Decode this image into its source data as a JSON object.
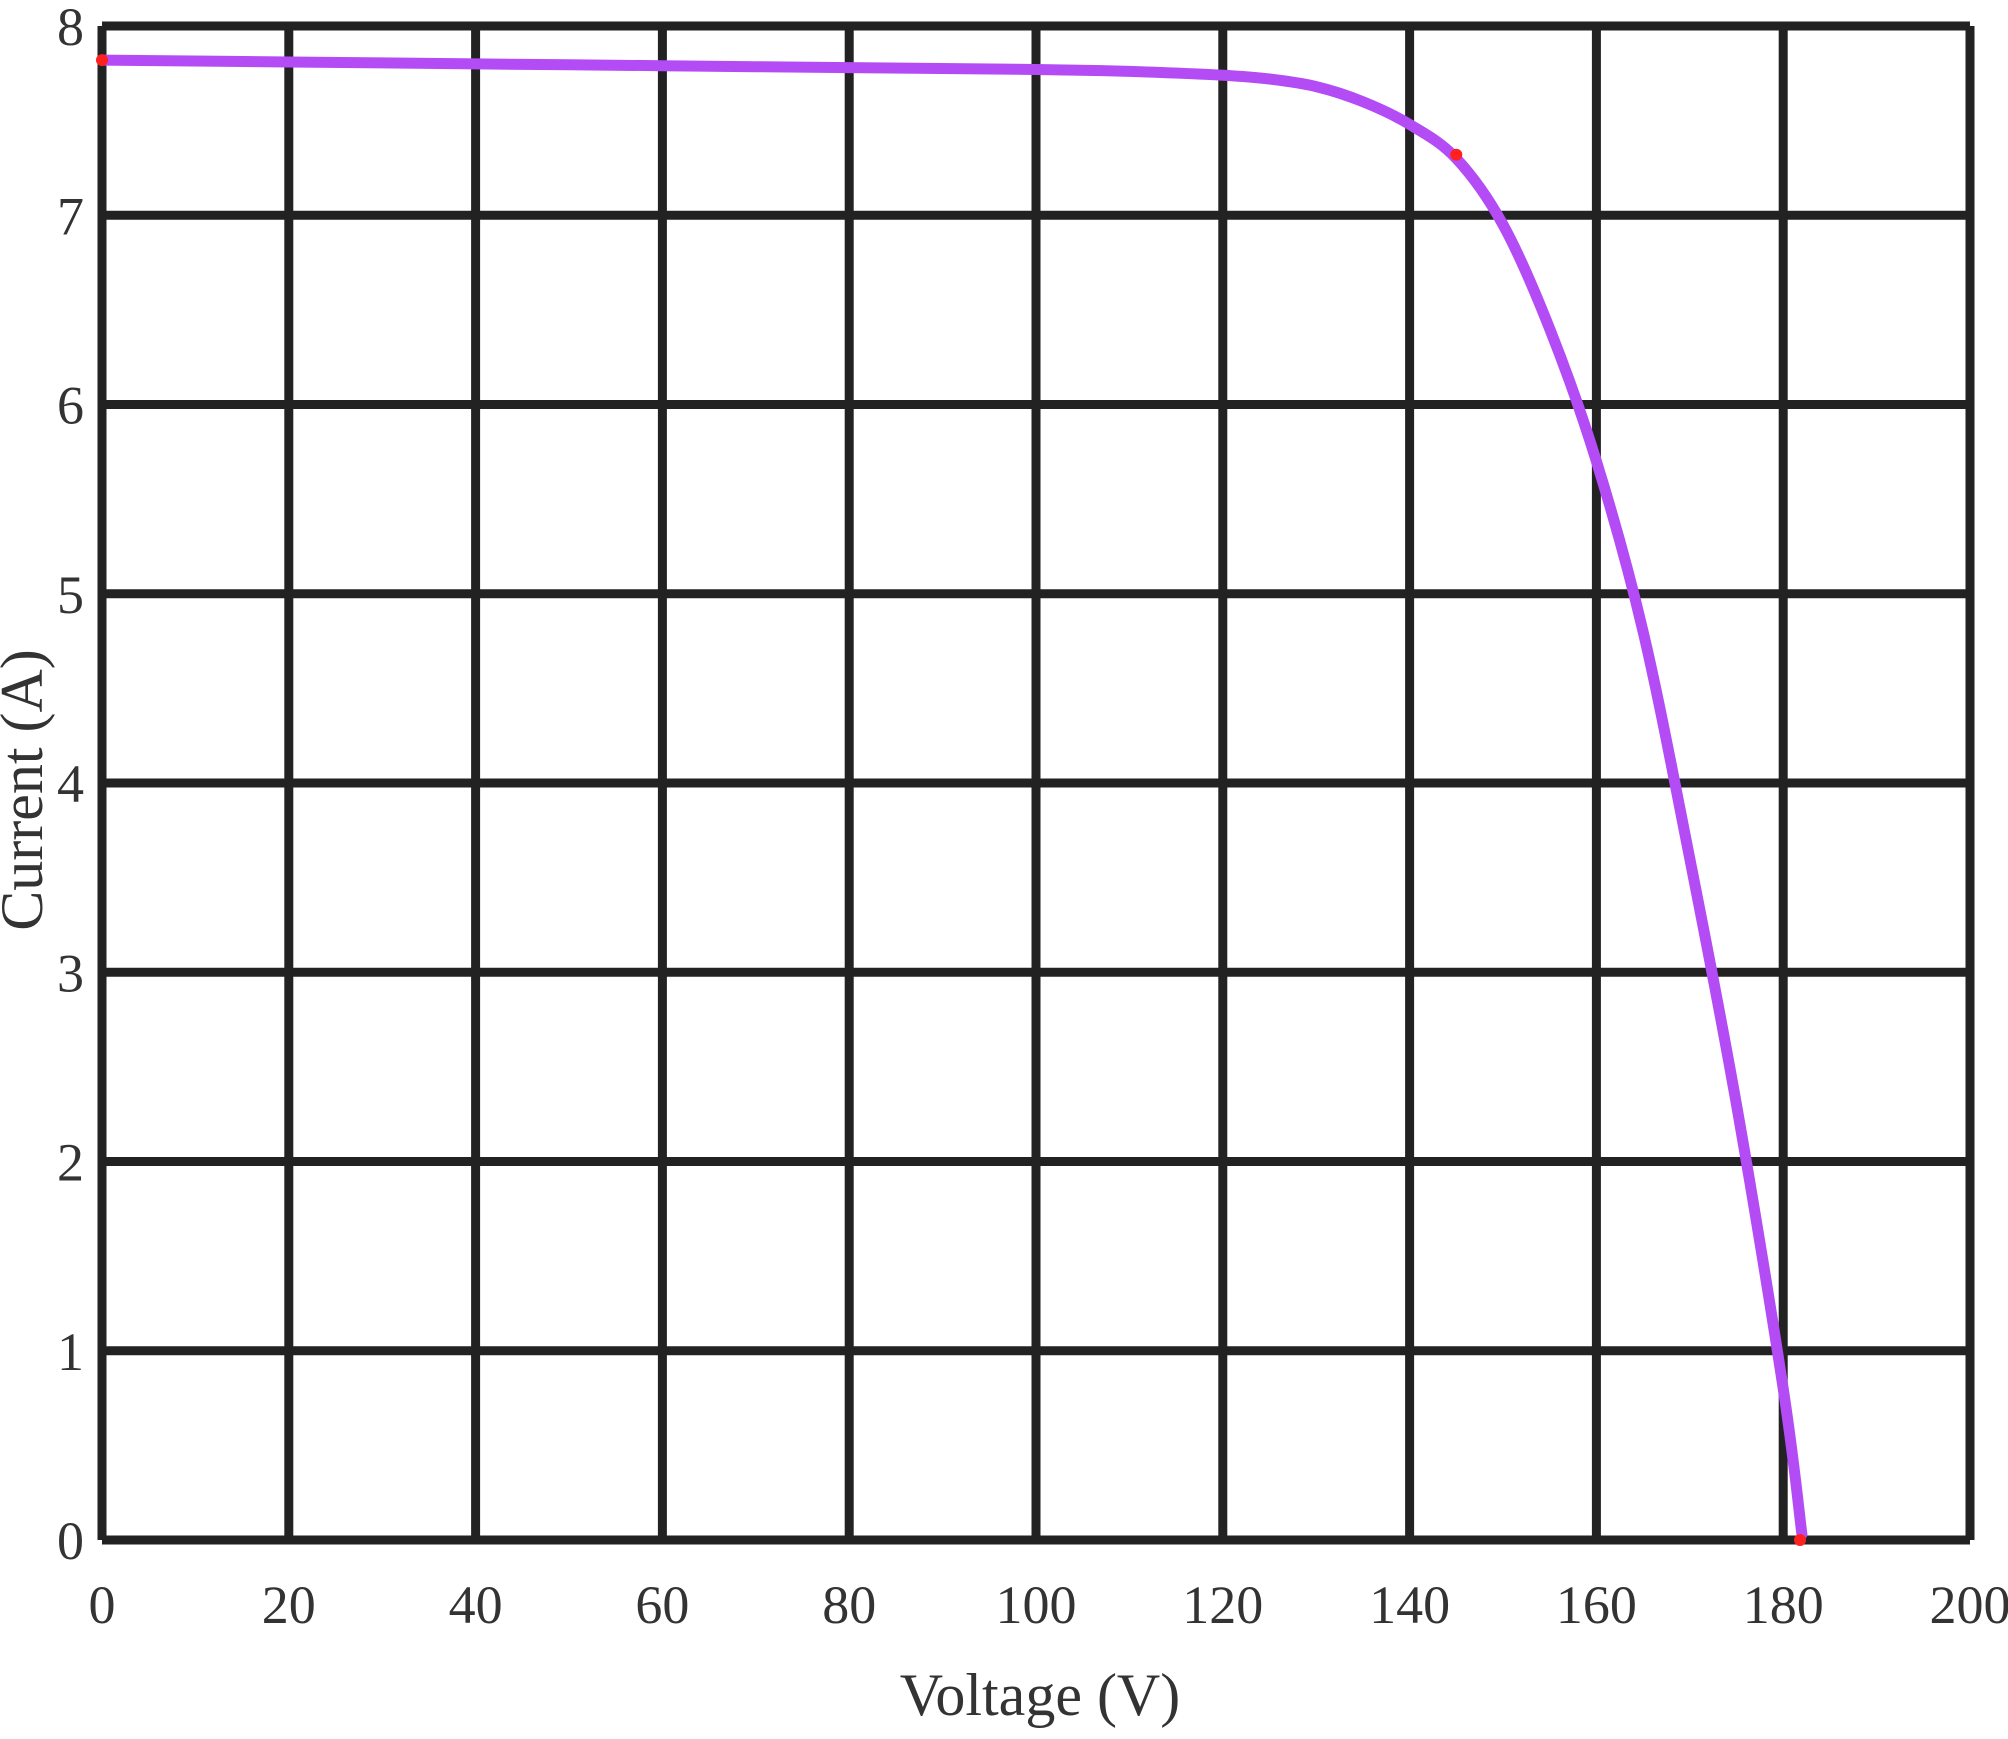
{
  "chart_data": {
    "type": "line",
    "title": "",
    "xlabel": "Voltage (V)",
    "ylabel": "Current (A)",
    "xlim": [
      0,
      200
    ],
    "ylim": [
      0,
      8
    ],
    "xticks": [
      0,
      20,
      40,
      60,
      80,
      100,
      120,
      140,
      160,
      180,
      200
    ],
    "yticks": [
      0,
      1,
      2,
      3,
      4,
      5,
      6,
      7,
      8
    ],
    "xtick_labels": [
      "0",
      "20",
      "40",
      "60",
      "80",
      "100",
      "120",
      "140",
      "160",
      "180",
      "200"
    ],
    "ytick_labels": [
      "0",
      "1",
      "2",
      "3",
      "4",
      "5",
      "6",
      "7",
      "8"
    ],
    "grid": true,
    "series": [
      {
        "color": "#b44cf5",
        "x": [
          0,
          20,
          40,
          60,
          80,
          100,
          110,
          120,
          125,
          130,
          135,
          140,
          145,
          150,
          155,
          160,
          165,
          170,
          175,
          180,
          182
        ],
        "y": [
          7.82,
          7.81,
          7.8,
          7.79,
          7.78,
          7.77,
          7.76,
          7.74,
          7.72,
          7.68,
          7.6,
          7.48,
          7.3,
          6.95,
          6.4,
          5.7,
          4.8,
          3.6,
          2.3,
          0.8,
          0.03
        ]
      }
    ],
    "markers": [
      {
        "x": 0,
        "y": 7.82,
        "color": "#ff2020"
      },
      {
        "x": 145,
        "y": 7.32,
        "color": "#ff2020"
      },
      {
        "x": 181.8,
        "y": 0,
        "color": "#ff2020"
      }
    ]
  }
}
